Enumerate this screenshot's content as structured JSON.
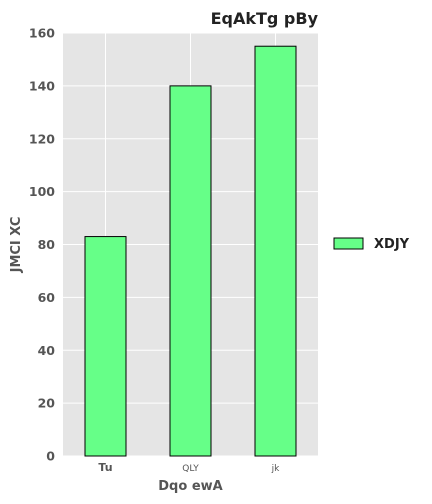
{
  "chart_data": {
    "type": "bar",
    "title": "EqAkTg  pBy",
    "xlabel": "Dqo  ewA",
    "ylabel": "JMCI XC",
    "categories": [
      "Tu",
      "QLY",
      "jk"
    ],
    "series": [
      {
        "name": "XDJY",
        "values": [
          83,
          140,
          155
        ],
        "color": "#66ff88"
      }
    ],
    "ylim": [
      0,
      160
    ],
    "yticks": [
      0,
      20,
      40,
      60,
      80,
      100,
      120,
      140,
      160
    ],
    "grid": true,
    "legend_position": "right"
  },
  "colors": {
    "plot_background": "#e5e5e5",
    "grid": "#ffffff",
    "bar_edge": "#000000"
  }
}
